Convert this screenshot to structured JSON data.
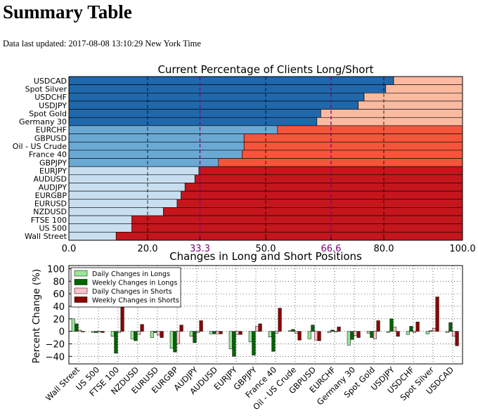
{
  "page": {
    "title": "Summary Table",
    "last_updated": "Data last updated: 2017-08-08 13:10:29 New York Time"
  },
  "colors": {
    "long_dark": "#1f68ac",
    "long_mid": "#6aa9d4",
    "long_light": "#c9dff0",
    "short_light": "#fcbaa1",
    "short_mid": "#f4553b",
    "short_dark": "#c4161c",
    "daily_longs": "#99e699",
    "weekly_longs": "#006400",
    "daily_shorts": "#ffc0cb",
    "weekly_shorts": "#8b0000",
    "threshold_line": "#800080"
  },
  "chart_data": [
    {
      "type": "bar",
      "orientation": "horizontal",
      "stacked": true,
      "title": "Current Percentage of Clients Long/Short",
      "categories": [
        "USDCAD",
        "Spot Silver",
        "USDCHF",
        "USDJPY",
        "Spot Gold",
        "Germany 30",
        "EURCHF",
        "GBPUSD",
        "Oil - US Crude",
        "France 40",
        "GBPJPY",
        "EURJPY",
        "AUDUSD",
        "AUDJPY",
        "EURGBP",
        "EURUSD",
        "NZDUSD",
        "FTSE 100",
        "US 500",
        "Wall Street"
      ],
      "series": [
        {
          "values": [
            82.5,
            80.5,
            75,
            73.5,
            64,
            63,
            53,
            44.5,
            44.5,
            44,
            38,
            33,
            32,
            29.5,
            28.5,
            27.5,
            24,
            16,
            16,
            12
          ]
        },
        {
          "values": [
            17.5,
            19.5,
            25,
            26.5,
            36,
            37,
            47,
            55.5,
            55.5,
            56,
            62,
            67,
            68,
            70.5,
            71.5,
            72.5,
            76,
            84,
            84,
            88
          ]
        }
      ],
      "xlim": [
        0,
        100
      ],
      "xticks": [
        "0.0",
        "20.0",
        "33.3",
        "50.0",
        "66.6",
        "80.0",
        "100.0"
      ],
      "reference_lines": [
        33.3,
        50,
        66.6
      ],
      "grid": true
    },
    {
      "type": "bar",
      "title": "Changes in Long and Short Positions",
      "ylabel": "Percent Change (%)",
      "categories": [
        "Wall Street",
        "US 500",
        "FTSE 100",
        "NZDUSD",
        "EURUSD",
        "EURGBP",
        "AUDJPY",
        "AUDUSD",
        "EURJPY",
        "GBPJPY",
        "France 40",
        "Oil - US Crude",
        "GBPUSD",
        "EURCHF",
        "Germany 30",
        "Spot Gold",
        "USDJPY",
        "USDCHF",
        "Spot Silver",
        "USDCAD"
      ],
      "series": [
        {
          "name": "Daily Changes in Longs",
          "values": [
            20,
            -2,
            -8,
            -12,
            -10,
            -27,
            -8,
            -4,
            -28,
            -17,
            -9,
            1,
            -12,
            -2,
            -22,
            -3,
            -2,
            -5,
            -4,
            -2
          ]
        },
        {
          "name": "Weekly Changes in Longs",
          "values": [
            12,
            -2,
            -35,
            -15,
            -2,
            -33,
            -18,
            -4,
            -40,
            -38,
            -32,
            3,
            10,
            2,
            -13,
            -10,
            20,
            8,
            1,
            14
          ]
        },
        {
          "name": "Daily Changes in Shorts",
          "values": [
            2,
            -1,
            -2,
            -5,
            -6,
            -20,
            -2,
            -4,
            -5,
            8,
            -3,
            -3,
            -14,
            -1,
            -7,
            -12,
            7,
            -2,
            5,
            -8
          ]
        },
        {
          "name": "Weekly Changes in Shorts",
          "values": [
            -1,
            -2,
            40,
            11,
            -10,
            10,
            17,
            -4,
            -5,
            12,
            37,
            -14,
            -15,
            7,
            -10,
            17,
            -8,
            15,
            55,
            -23
          ]
        }
      ],
      "ylim": [
        -52,
        105
      ],
      "yticks": [
        "100",
        "80",
        "60",
        "40",
        "20",
        "0",
        "−20",
        "−40"
      ],
      "legend": "top-left",
      "grid": true
    }
  ]
}
